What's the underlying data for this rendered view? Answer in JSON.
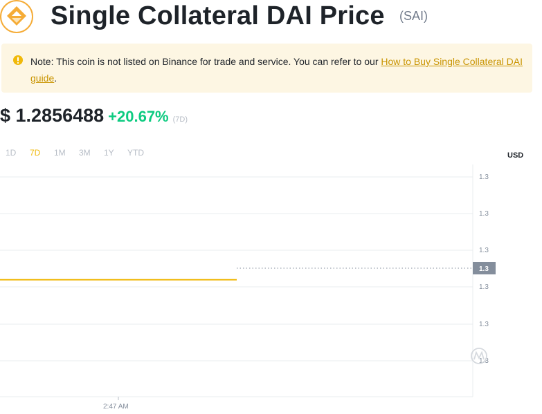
{
  "header": {
    "title": "Single Collateral DAI Price",
    "symbol": "(SAI)",
    "logo_icon": "sai-coin-icon"
  },
  "notice": {
    "icon": "warning-circle-icon",
    "text": "Note: This coin is not listed on Binance for trade and service. You can refer to our ",
    "link_text": "How to Buy Single Collateral DAI guide",
    "suffix": "."
  },
  "price": {
    "value": "$ 1.2856488",
    "change": "+20.67%",
    "period": "(7D)"
  },
  "ranges": [
    "1D",
    "7D",
    "1M",
    "3M",
    "1Y",
    "YTD"
  ],
  "active_range": "7D",
  "currency": "USD",
  "colors": {
    "accent": "#f0b90b",
    "positive": "#0ecb81",
    "link": "#c99400",
    "notice_bg": "#fdf6e3",
    "badge": "#848e9c"
  },
  "chart_data": {
    "type": "line",
    "y_tick_labels": [
      "1.3",
      "1.3",
      "1.3",
      "1.3",
      "1.3",
      "1.3"
    ],
    "current_value_label": "1.3",
    "x_tick_labels": [
      "2:47 AM"
    ],
    "series": [
      {
        "values": [
          1.2856,
          1.2856
        ]
      }
    ],
    "grid": true,
    "watermark_icon": "coinmarketcap-watermark-icon"
  }
}
